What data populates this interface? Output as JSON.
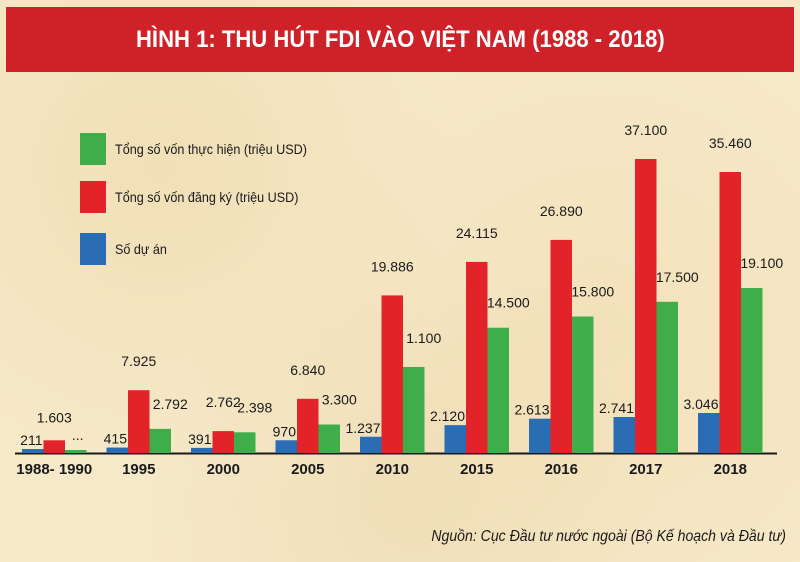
{
  "header": {
    "title": "HÌNH 1: THU HÚT FDI VÀO VIỆT NAM (1988 - 2018)"
  },
  "colors": {
    "title_bg": "#cf2128",
    "thuc_hien": "#3fae4a",
    "dang_ky": "#e2232a",
    "so_du_an": "#2a6db5",
    "axis": "#1a1a1a"
  },
  "chart_data": {
    "type": "bar",
    "title": "HÌNH 1: THU HÚT FDI VÀO VIỆT NAM (1988 - 2018)",
    "xlabel": "",
    "ylabel": "",
    "grid": false,
    "legend_position": "top-left",
    "categories": [
      "1988- 1990",
      "1995",
      "2000",
      "2005",
      "2010",
      "2015",
      "2016",
      "2017",
      "2018"
    ],
    "series": [
      {
        "name": "Số dự án",
        "color": "#2a6db5",
        "values": [
          211,
          415,
          391,
          970,
          1237,
          2120,
          2613,
          2741,
          3046
        ],
        "labels": [
          "211",
          "415",
          "391",
          "970",
          "1.237",
          "2.120",
          "2.613",
          "2.741",
          "3.046"
        ]
      },
      {
        "name": "Tổng số vốn đăng ký (triệu USD)",
        "color": "#e2232a",
        "values": [
          1603,
          7925,
          2762,
          6840,
          19886,
          24115,
          26890,
          37100,
          35460
        ],
        "labels": [
          "1.603",
          "7.925",
          "2.762",
          "6.840",
          "19.886",
          "24.115",
          "26.890",
          "37.100",
          "35.460"
        ]
      },
      {
        "name": "Tổng số vốn thực hiện (triệu USD)",
        "color": "#3fae4a",
        "values": [
          null,
          2792,
          2398,
          3300,
          1100,
          14500,
          15800,
          17500,
          19100
        ],
        "labels": [
          "...",
          "2.792",
          "2.398",
          "3.300",
          "1.100",
          "14.500",
          "15.800",
          "17.500",
          "19.100"
        ]
      }
    ]
  },
  "legend": {
    "items": [
      {
        "label": "Tổng số vốn thực hiện (triệu USD)",
        "color": "#3fae4a"
      },
      {
        "label": "Tổng số vốn đăng ký (triệu USD)",
        "color": "#e2232a"
      },
      {
        "label": "Số dự án",
        "color": "#2a6db5"
      }
    ]
  },
  "footer": {
    "source": "Nguồn: Cục Đầu tư nước ngoài (Bộ Kế hoạch và Đầu tư)"
  }
}
